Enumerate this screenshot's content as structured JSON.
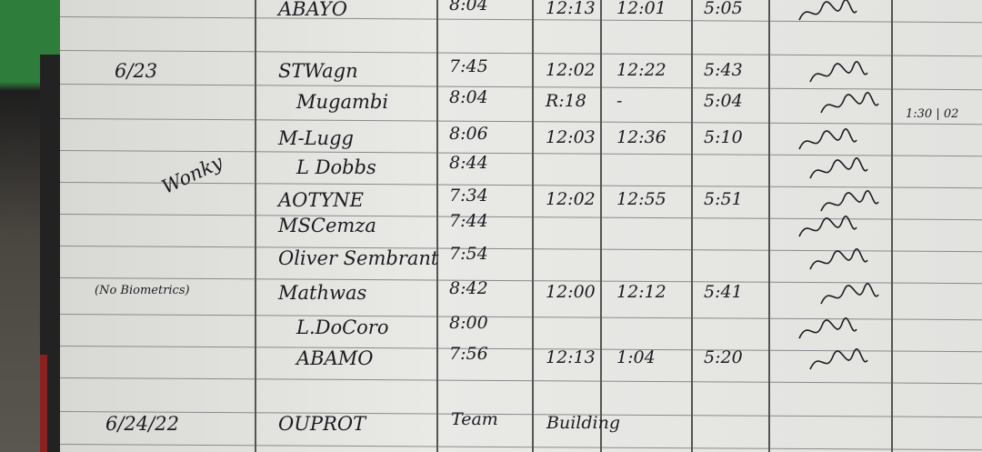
{
  "log": {
    "rows": [
      {
        "date": "",
        "name": "ABAYO",
        "time_in": "8:04",
        "lunch_out": "12:13",
        "lunch_in": "12:01",
        "time_out": "5:05"
      },
      {
        "date": "6/23",
        "name": "STWagn",
        "time_in": "7:45",
        "lunch_out": "12:02",
        "lunch_in": "12:22",
        "time_out": "5:43"
      },
      {
        "date": "",
        "name": "Mugambi",
        "time_in": "8:04",
        "lunch_out": "R:18",
        "lunch_in": "-",
        "time_out": "5:04"
      },
      {
        "date": "",
        "name": "M-Lugg",
        "time_in": "8:06",
        "lunch_out": "12:03",
        "lunch_in": "12:36",
        "time_out": "5:10"
      },
      {
        "date": "",
        "name": "L Dobbs",
        "time_in": "8:44",
        "lunch_out": "",
        "lunch_in": "",
        "time_out": ""
      },
      {
        "date": "",
        "name": "AOTYNE",
        "time_in": "7:34",
        "lunch_out": "12:02",
        "lunch_in": "12:55",
        "time_out": "5:51"
      },
      {
        "date": "",
        "name": "MSCemza",
        "time_in": "7:44",
        "lunch_out": "",
        "lunch_in": "",
        "time_out": ""
      },
      {
        "date": "",
        "name": "Oliver Sembrant",
        "time_in": "7:54",
        "lunch_out": "",
        "lunch_in": "",
        "time_out": ""
      },
      {
        "date": "",
        "name": "Mathwas",
        "time_in": "8:42",
        "lunch_out": "12:00",
        "lunch_in": "12:12",
        "time_out": "5:41"
      },
      {
        "date": "",
        "name": "L.DoCoro",
        "time_in": "8:00",
        "lunch_out": "",
        "lunch_in": "",
        "time_out": ""
      },
      {
        "date": "",
        "name": "ABAMO",
        "time_in": "7:56",
        "lunch_out": "12:13",
        "lunch_in": "1:04",
        "time_out": "5:20"
      },
      {
        "date": "6/24/22",
        "name": "OUPROT",
        "time_in": "Team",
        "lunch_out": "Building",
        "lunch_in": "",
        "time_out": ""
      }
    ],
    "notes": {
      "wonky": "Wonky",
      "no_biometrics": "(No Biometrics)",
      "side_note": "1:30 | 02"
    }
  },
  "colors": {
    "ink": "#1c1c22",
    "paper": "#e6e6e3",
    "rule": "#8a8a8f"
  }
}
